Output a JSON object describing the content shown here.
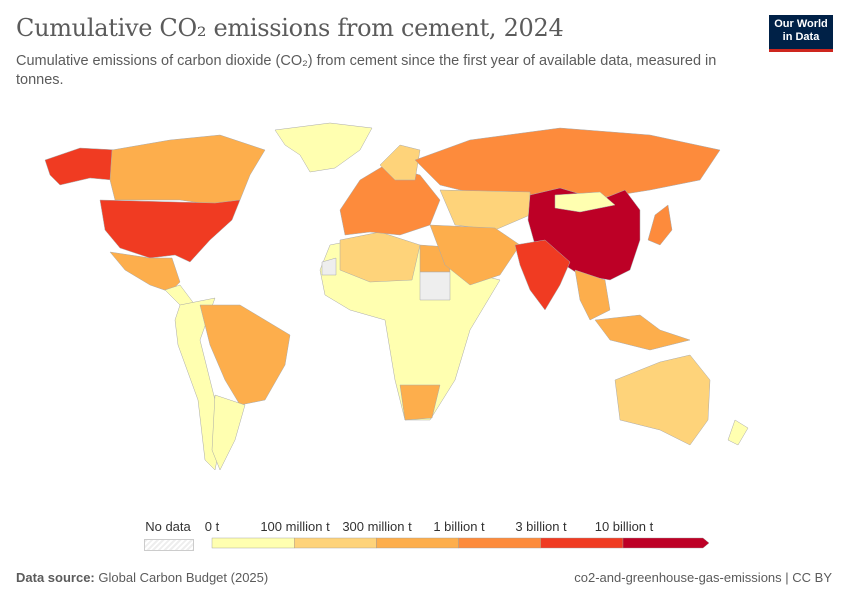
{
  "header": {
    "title": "Cumulative CO₂ emissions from cement, 2024",
    "subtitle": "Cumulative emissions of carbon dioxide (CO₂) from cement since the first year of available data, measured in tonnes.",
    "logo": "Our World in Data"
  },
  "legend": {
    "no_data_label": "No data",
    "bins": [
      "0 t",
      "100 million t",
      "300 million t",
      "1 billion t",
      "3 billion t",
      "10 billion t"
    ],
    "colors": [
      "#ffffb0",
      "#fed37a",
      "#fdae4c",
      "#fd8b3c",
      "#f03b22",
      "#bd0026"
    ],
    "no_data_color": "#eeeeee"
  },
  "map": {
    "regions": [
      {
        "name": "Canada",
        "bin": 2
      },
      {
        "name": "United States",
        "bin": 5
      },
      {
        "name": "Mexico",
        "bin": 2
      },
      {
        "name": "Greenland",
        "bin": 0
      },
      {
        "name": "Brazil",
        "bin": 2
      },
      {
        "name": "South America (other)",
        "bin": 0
      },
      {
        "name": "Africa (most)",
        "bin": 0
      },
      {
        "name": "Egypt",
        "bin": 2
      },
      {
        "name": "South Africa",
        "bin": 2
      },
      {
        "name": "Europe",
        "bin": 3
      },
      {
        "name": "Russia",
        "bin": 3
      },
      {
        "name": "China",
        "bin": 6
      },
      {
        "name": "India",
        "bin": 5
      },
      {
        "name": "Middle East",
        "bin": 2
      },
      {
        "name": "Central Asia",
        "bin": 1
      },
      {
        "name": "Japan",
        "bin": 3
      },
      {
        "name": "Southeast Asia",
        "bin": 2
      },
      {
        "name": "Australia",
        "bin": 1
      }
    ]
  },
  "footer": {
    "source_label": "Data source:",
    "source": "Global Carbon Budget (2025)",
    "right": "co2-and-greenhouse-gas-emissions | CC BY"
  }
}
